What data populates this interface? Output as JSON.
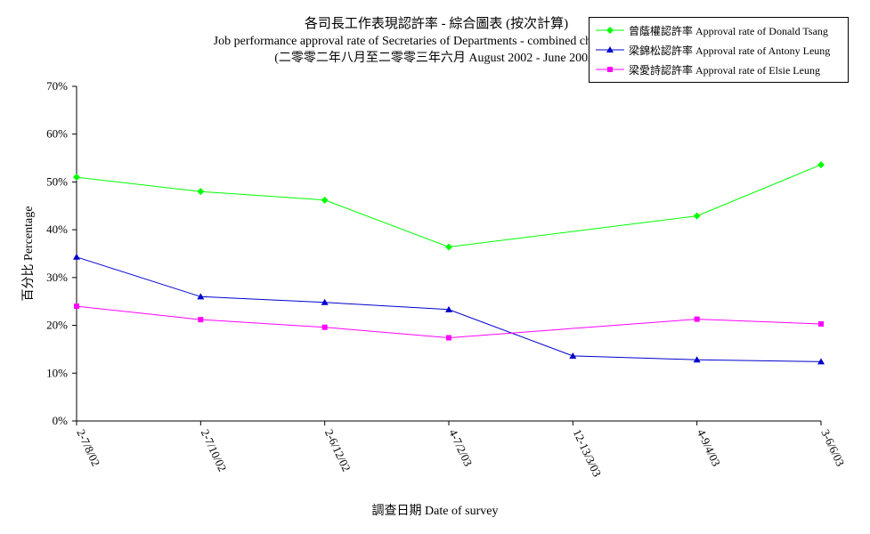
{
  "chart_data": {
    "type": "line",
    "title": "各司長工作表現認許率  -  綜合圖表   (按次計算)",
    "subtitle": "Job performance approval rate of Secretaries of Departments - combined charts (per poll)",
    "subtitle2": "(二零零二年八月至二零零三年六月 August 2002 - June 2003)",
    "xlabel": "調查日期 Date of survey",
    "ylabel": "百分比 Percentage",
    "categories": [
      "2-7/8/02",
      "2-7/10/02",
      "2-6/12/02",
      "4-7/2/03",
      "12-13/3/03",
      "4-9/4/03",
      "3-6/6/03"
    ],
    "ylim": [
      0,
      70
    ],
    "yticks": [
      "0%",
      "10%",
      "20%",
      "30%",
      "40%",
      "50%",
      "60%",
      "70%"
    ],
    "grid": false,
    "legend_position": "top-right",
    "series": [
      {
        "name": "曾蔭權認許率 Approval rate of Donald Tsang",
        "color": "#00ff00",
        "marker": "diamond",
        "values": [
          51.0,
          48.0,
          46.2,
          36.4,
          null,
          42.9,
          53.6
        ]
      },
      {
        "name": "梁錦松認許率 Approval rate of Antony Leung",
        "color": "#0000cc",
        "marker": "triangle",
        "values": [
          34.3,
          26.0,
          24.8,
          23.3,
          13.6,
          12.8,
          12.4
        ]
      },
      {
        "name": "梁愛詩認許率 Approval rate of Elsie Leung",
        "color": "#ff00ff",
        "marker": "square",
        "values": [
          24.0,
          21.2,
          19.6,
          17.4,
          null,
          21.3,
          20.3
        ]
      }
    ]
  }
}
